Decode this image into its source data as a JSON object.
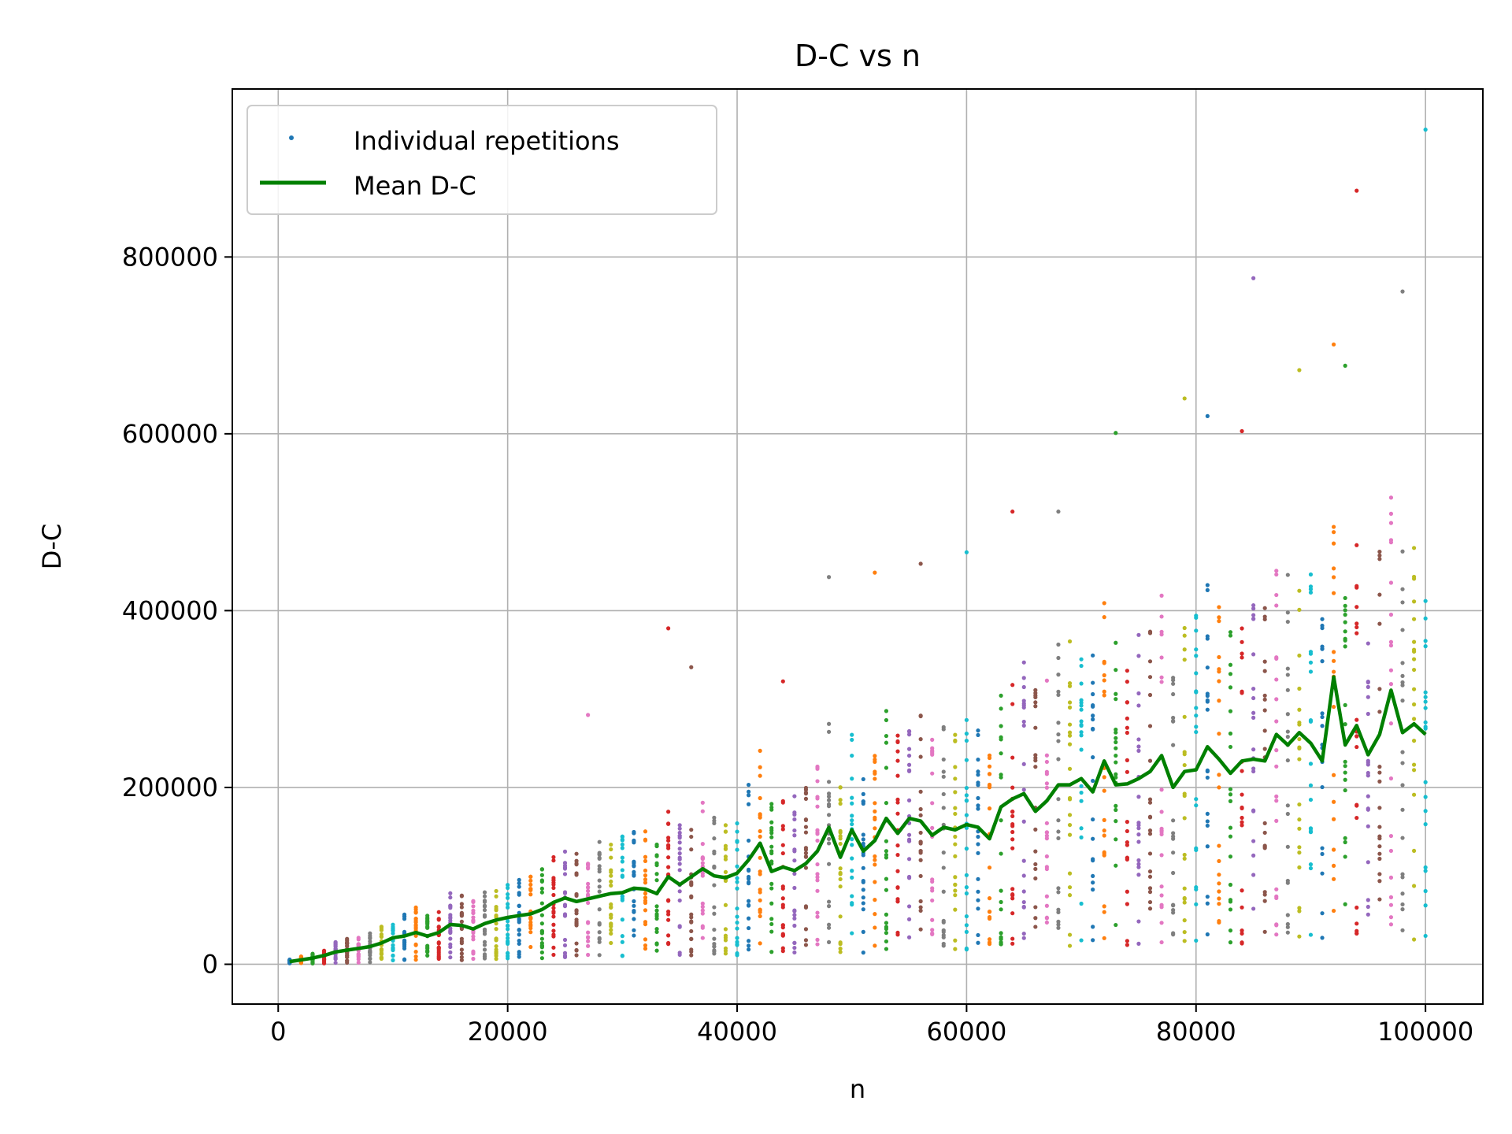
{
  "chart_data": {
    "type": "scatter",
    "title": "D-C vs n",
    "xlabel": "n",
    "ylabel": "D-C",
    "xlim": [
      -4000,
      105000
    ],
    "ylim": [
      -45000,
      990000
    ],
    "xticks": [
      0,
      20000,
      40000,
      60000,
      80000,
      100000
    ],
    "xtick_labels": [
      "0",
      "20000",
      "40000",
      "60000",
      "80000",
      "100000"
    ],
    "yticks": [
      0,
      200000,
      400000,
      600000,
      800000
    ],
    "ytick_labels": [
      "0",
      "200000",
      "400000",
      "600000",
      "800000"
    ],
    "grid": true,
    "legend_position": "upper-left",
    "colors": {
      "mean_line": "#008000",
      "cycle": [
        "#1f77b4",
        "#ff7f0e",
        "#2ca02c",
        "#d62728",
        "#9467bd",
        "#8c564b",
        "#e377c2",
        "#7f7f7f",
        "#bcbd22",
        "#17becf"
      ]
    },
    "series": [
      {
        "name": "Individual repetitions",
        "kind": "scatter"
      },
      {
        "name": "Mean D-C",
        "kind": "line",
        "x": [
          1000,
          2000,
          3000,
          4000,
          5000,
          6000,
          7000,
          8000,
          9000,
          10000,
          11000,
          12000,
          13000,
          14000,
          15000,
          16000,
          17000,
          18000,
          19000,
          20000,
          21000,
          22000,
          23000,
          24000,
          25000,
          26000,
          27000,
          28000,
          29000,
          30000,
          31000,
          32000,
          33000,
          34000,
          35000,
          36000,
          37000,
          38000,
          39000,
          40000,
          41000,
          42000,
          43000,
          44000,
          45000,
          46000,
          47000,
          48000,
          49000,
          50000,
          51000,
          52000,
          53000,
          54000,
          55000,
          56000,
          57000,
          58000,
          59000,
          60000,
          61000,
          62000,
          63000,
          64000,
          65000,
          66000,
          67000,
          68000,
          69000,
          70000,
          71000,
          72000,
          73000,
          74000,
          75000,
          76000,
          77000,
          78000,
          79000,
          80000,
          81000,
          82000,
          83000,
          84000,
          85000,
          86000,
          87000,
          88000,
          89000,
          90000,
          91000,
          92000,
          93000,
          94000,
          95000,
          96000,
          97000,
          98000,
          99000,
          100000
        ],
        "values": [
          3000,
          5000,
          7000,
          10000,
          14000,
          16000,
          18000,
          20000,
          24000,
          30000,
          32000,
          36000,
          32000,
          36000,
          45000,
          44000,
          40000,
          46000,
          50000,
          53000,
          55000,
          57000,
          62000,
          70000,
          75000,
          71000,
          74000,
          77000,
          80000,
          81000,
          86000,
          85000,
          80000,
          99000,
          90000,
          99000,
          108000,
          100000,
          98000,
          103000,
          118000,
          137000,
          105000,
          110000,
          106000,
          114000,
          128000,
          155000,
          121000,
          152000,
          128000,
          140000,
          165000,
          148000,
          165000,
          162000,
          146000,
          155000,
          152000,
          158000,
          155000,
          142000,
          178000,
          187000,
          193000,
          173000,
          185000,
          203000,
          203000,
          210000,
          195000,
          230000,
          203000,
          204000,
          210000,
          218000,
          236000,
          200000,
          218000,
          220000,
          246000,
          232000,
          216000,
          230000,
          232000,
          230000,
          260000,
          248000,
          262000,
          250000,
          230000,
          325000,
          248000,
          270000,
          237000,
          260000,
          310000,
          262000,
          272000,
          260000
        ]
      }
    ],
    "scatter_n_start": 1000,
    "scatter_n_step": 1000,
    "scatter_n_count": 100,
    "scatter_reps_per_n": 20,
    "scatter_outliers": [
      {
        "x": 34000,
        "y": 380000
      },
      {
        "x": 36000,
        "y": 336000
      },
      {
        "x": 27000,
        "y": 282000
      },
      {
        "x": 44000,
        "y": 320000
      },
      {
        "x": 48000,
        "y": 438000
      },
      {
        "x": 52000,
        "y": 443000
      },
      {
        "x": 56000,
        "y": 453000
      },
      {
        "x": 60000,
        "y": 466000
      },
      {
        "x": 64000,
        "y": 512000
      },
      {
        "x": 68000,
        "y": 512000
      },
      {
        "x": 73000,
        "y": 601000
      },
      {
        "x": 79000,
        "y": 640000
      },
      {
        "x": 81000,
        "y": 620000
      },
      {
        "x": 84000,
        "y": 603000
      },
      {
        "x": 85000,
        "y": 776000
      },
      {
        "x": 89000,
        "y": 672000
      },
      {
        "x": 92000,
        "y": 701000
      },
      {
        "x": 93000,
        "y": 677000
      },
      {
        "x": 94000,
        "y": 875000
      },
      {
        "x": 98000,
        "y": 761000
      },
      {
        "x": 100000,
        "y": 944000
      }
    ]
  }
}
